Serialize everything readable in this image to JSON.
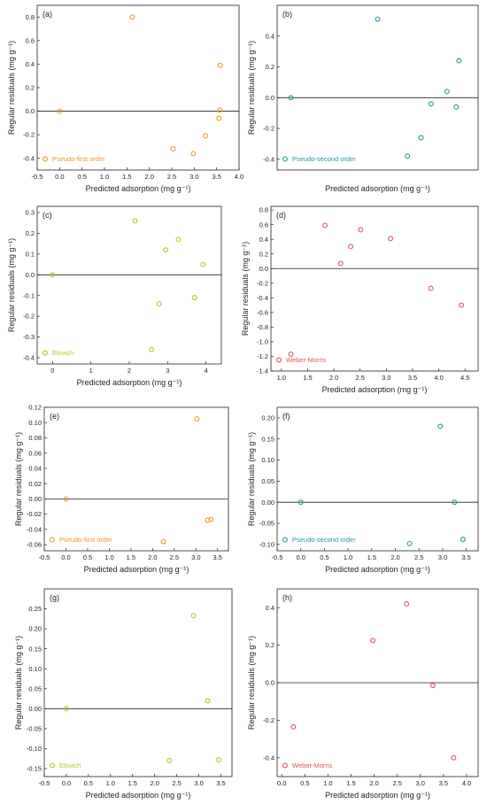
{
  "chart_data": [
    {
      "panel_label": "(a)",
      "type": "scatter",
      "xlabel": "Predicted adsorption (mg g⁻¹)",
      "ylabel": "Regular residuals (mg g⁻¹)",
      "xlim": [
        -0.5,
        4.0
      ],
      "ylim": [
        -0.5,
        0.9
      ],
      "xticks": [
        -0.5,
        0.0,
        0.5,
        1.0,
        1.5,
        2.0,
        2.5,
        3.0,
        3.5,
        4.0
      ],
      "xtick_labels": [
        "-0.5",
        "0.0",
        "0.5",
        "1.0",
        "1.5",
        "2.0",
        "2.5",
        "3.0",
        "3.5",
        "4.0"
      ],
      "yticks": [
        -0.4,
        -0.2,
        0.0,
        0.2,
        0.4,
        0.6,
        0.8
      ],
      "ytick_labels": [
        "-0.4",
        "-0.2",
        "0.0",
        "0.2",
        "0.4",
        "0.6",
        "0.8"
      ],
      "color": "#f0961e",
      "series": [
        {
          "name": "Pseudo-first order",
          "x": [
            0.0,
            1.62,
            2.53,
            2.98,
            3.25,
            3.55,
            3.57,
            3.58
          ],
          "y": [
            0.0,
            0.8,
            -0.32,
            -0.36,
            -0.21,
            -0.06,
            0.01,
            0.39
          ]
        }
      ]
    },
    {
      "panel_label": "(b)",
      "type": "scatter",
      "xlabel": "Predicted adsorption (mg g⁻¹)",
      "ylabel": "Regular residuals (mg g⁻¹)",
      "xlim": [
        -0.3,
        4.1
      ],
      "ylim": [
        -0.47,
        0.6
      ],
      "xticks": [],
      "xtick_labels": [],
      "yticks": [
        -0.4,
        -0.2,
        0.0,
        0.2,
        0.4
      ],
      "ytick_labels": [
        "-0.4",
        "-0.2",
        "0.0",
        "0.2",
        "0.4"
      ],
      "color": "#1e9aa0",
      "series": [
        {
          "name": "Pseudo-second order",
          "x": [
            0.0,
            1.9,
            2.55,
            2.85,
            3.07,
            3.42,
            3.62,
            3.68
          ],
          "y": [
            0.0,
            0.51,
            -0.38,
            -0.26,
            -0.04,
            0.04,
            -0.06,
            0.24
          ]
        }
      ]
    },
    {
      "panel_label": "(c)",
      "type": "scatter",
      "xlabel": "Predicted adsorption (mg g⁻¹)",
      "ylabel": "Regular residuals (mg g⁻¹)",
      "xlim": [
        -0.4,
        4.4
      ],
      "ylim": [
        -0.43,
        0.33
      ],
      "xticks": [
        0,
        1,
        2,
        3,
        4
      ],
      "xtick_labels": [
        "0",
        "1",
        "2",
        "3",
        "4"
      ],
      "yticks": [
        -0.4,
        -0.3,
        -0.2,
        -0.1,
        0.0,
        0.1,
        0.2,
        0.3
      ],
      "ytick_labels": [
        "-0.4",
        "-0.3",
        "-0.2",
        "-0.1",
        "0.0",
        "0.1",
        "0.2",
        "0.3"
      ],
      "color": "#b9c21e",
      "series": [
        {
          "name": "Elovich",
          "x": [
            0.0,
            2.15,
            2.58,
            2.78,
            2.95,
            3.28,
            3.7,
            3.92
          ],
          "y": [
            0.0,
            0.26,
            -0.36,
            -0.14,
            0.12,
            0.17,
            -0.11,
            0.05
          ]
        }
      ]
    },
    {
      "panel_label": "(d)",
      "type": "scatter",
      "xlabel": "Predicted adsorption (mg g⁻¹)",
      "ylabel": "Regular residuals (mg g⁻¹)",
      "xlim": [
        0.8,
        4.75
      ],
      "ylim": [
        -1.4,
        0.85
      ],
      "xticks": [
        1.0,
        1.5,
        2.0,
        2.5,
        3.0,
        3.5,
        4.0,
        4.5
      ],
      "xtick_labels": [
        "1.0",
        "1.5",
        "2.0",
        "2.5",
        "3.0",
        "3.5",
        "4.0",
        "4.5"
      ],
      "yticks": [
        -1.4,
        -1.2,
        -1.0,
        -0.8,
        -0.6,
        -0.4,
        -0.2,
        0.0,
        0.2,
        0.4,
        0.6,
        0.8
      ],
      "ytick_labels": [
        "-1.4",
        "-1.2",
        "-1.0",
        "-0.8",
        "-0.6",
        "-0.4",
        "-0.2",
        "0.0",
        "0.2",
        "0.4",
        "0.6",
        "0.8"
      ],
      "color": "#e05555",
      "series": [
        {
          "name": "Weber-Morris",
          "x": [
            1.18,
            1.83,
            2.13,
            2.32,
            2.51,
            3.08,
            3.85,
            4.43
          ],
          "y": [
            -1.17,
            0.59,
            0.07,
            0.3,
            0.53,
            0.41,
            -0.27,
            -0.5
          ]
        }
      ]
    },
    {
      "panel_label": "(e)",
      "type": "scatter",
      "xlabel": "Predicted adsorption (mg g⁻¹)",
      "ylabel": "Regular residuals (mg g⁻¹)",
      "xlim": [
        -0.5,
        3.75
      ],
      "ylim": [
        -0.068,
        0.12
      ],
      "xticks": [
        -0.5,
        0.0,
        0.5,
        1.0,
        1.5,
        2.0,
        2.5,
        3.0,
        3.5
      ],
      "xtick_labels": [
        "-0.5",
        "0.0",
        "0.5",
        "1.0",
        "1.5",
        "2.0",
        "2.5",
        "3.0",
        "3.5"
      ],
      "yticks": [
        -0.06,
        -0.04,
        -0.02,
        0.0,
        0.02,
        0.04,
        0.06,
        0.08,
        0.1,
        0.12
      ],
      "ytick_labels": [
        "-0.06",
        "-0.04",
        "-0.02",
        "0.00",
        "0.02",
        "0.04",
        "0.06",
        "0.08",
        "0.10",
        "0.12"
      ],
      "color": "#f0961e",
      "series": [
        {
          "name": "Pseudo-first order",
          "x": [
            0.0,
            2.25,
            3.02,
            3.27,
            3.35
          ],
          "y": [
            0.0,
            -0.056,
            0.105,
            -0.028,
            -0.027
          ]
        }
      ]
    },
    {
      "panel_label": "(f)",
      "type": "scatter",
      "xlabel": "Predicted adsorption (mg g⁻¹)",
      "ylabel": "Regular residuals (mg g⁻¹)",
      "xlim": [
        -0.5,
        3.75
      ],
      "ylim": [
        -0.115,
        0.225
      ],
      "xticks": [
        -0.5,
        0.0,
        0.5,
        1.0,
        1.5,
        2.0,
        2.5,
        3.0,
        3.5
      ],
      "xtick_labels": [
        "-0.5",
        "0.0",
        "0.5",
        "1.0",
        "1.5",
        "2.0",
        "2.5",
        "3.0",
        "3.5"
      ],
      "yticks": [
        -0.1,
        -0.05,
        0.0,
        0.05,
        0.1,
        0.15,
        0.2
      ],
      "ytick_labels": [
        "-0.10",
        "-0.05",
        "0.00",
        "0.05",
        "0.10",
        "0.15",
        "0.20"
      ],
      "color": "#1e9aa0",
      "series": [
        {
          "name": "Pseudo-second order",
          "x": [
            0.0,
            2.3,
            2.95,
            3.25,
            3.43
          ],
          "y": [
            0.0,
            -0.098,
            0.18,
            0.0,
            -0.088
          ]
        }
      ]
    },
    {
      "panel_label": "(g)",
      "type": "scatter",
      "xlabel": "Predicted adsorption (mg g⁻¹)",
      "ylabel": "Regular residuals (mg g⁻¹)",
      "xlim": [
        -0.5,
        3.75
      ],
      "ylim": [
        -0.17,
        0.3
      ],
      "xticks": [
        -0.5,
        0.0,
        0.5,
        1.0,
        1.5,
        2.0,
        2.5,
        3.0,
        3.5
      ],
      "xtick_labels": [
        "-0.5",
        "0.0",
        "0.5",
        "1.0",
        "1.5",
        "2.0",
        "2.5",
        "3.0",
        "3.5"
      ],
      "yticks": [
        -0.15,
        -0.1,
        -0.05,
        0.0,
        0.05,
        0.1,
        0.15,
        0.2,
        0.25
      ],
      "ytick_labels": [
        "-0.15",
        "-0.10",
        "-0.05",
        "0.00",
        "0.05",
        "0.10",
        "0.15",
        "0.20",
        "0.25"
      ],
      "color": "#b9c21e",
      "series": [
        {
          "name": "Elovich",
          "x": [
            0.0,
            2.33,
            2.88,
            3.2,
            3.45
          ],
          "y": [
            0.0,
            -0.13,
            0.233,
            0.02,
            -0.128
          ]
        }
      ]
    },
    {
      "panel_label": "(h)",
      "type": "scatter",
      "xlabel": "Predicted adsorption (mg g⁻¹)",
      "ylabel": "Regular residuals (mg g⁻¹)",
      "xlim": [
        -0.1,
        4.25
      ],
      "ylim": [
        -0.5,
        0.5
      ],
      "xticks": [
        0.0,
        0.5,
        1.0,
        1.5,
        2.0,
        2.5,
        3.0,
        3.5,
        4.0
      ],
      "xtick_labels": [
        "0.0",
        "0.5",
        "1.0",
        "1.5",
        "2.0",
        "2.5",
        "3.0",
        "3.5",
        "4.0"
      ],
      "yticks": [
        -0.4,
        -0.2,
        0.0,
        0.2,
        0.4
      ],
      "ytick_labels": [
        "-0.4",
        "-0.2",
        "0.0",
        "0.2",
        "0.4"
      ],
      "color": "#e05555",
      "series": [
        {
          "name": "Weber-Morris",
          "x": [
            0.25,
            1.97,
            2.7,
            3.27,
            3.72
          ],
          "y": [
            -0.235,
            0.225,
            0.42,
            -0.015,
            -0.4
          ]
        }
      ]
    }
  ]
}
